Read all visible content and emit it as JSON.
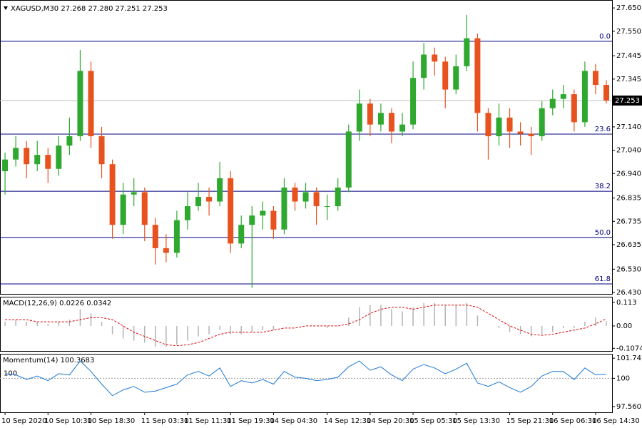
{
  "chart_data": [
    {
      "type": "candlestick",
      "title": "XAGUSD,M30  27.268 27.280 27.251 27.253",
      "open": [
        26.95,
        27.0,
        27.05,
        26.98,
        27.02,
        26.96,
        27.06,
        27.1,
        27.38,
        27.1,
        26.98,
        26.72,
        26.85,
        26.86,
        26.72,
        26.62,
        26.6,
        26.74,
        26.8,
        26.84,
        26.82,
        26.92,
        26.64,
        26.72,
        26.76,
        26.78,
        26.7,
        26.88,
        26.82,
        26.86,
        26.8,
        26.8,
        26.88,
        27.12,
        27.24,
        27.15,
        27.2,
        27.12,
        27.15,
        27.35,
        27.45,
        27.42,
        27.3,
        27.4,
        27.52,
        27.2,
        27.1,
        27.18,
        27.12,
        27.11,
        27.1,
        27.22,
        27.26,
        27.28,
        27.16,
        27.38,
        27.32
      ],
      "high": [
        27.03,
        27.1,
        27.08,
        27.08,
        27.05,
        27.1,
        27.18,
        27.47,
        27.42,
        27.14,
        27.0,
        26.9,
        26.92,
        26.88,
        26.75,
        26.68,
        26.78,
        26.86,
        26.9,
        26.88,
        26.99,
        26.95,
        26.76,
        26.8,
        26.82,
        26.8,
        26.92,
        26.9,
        26.9,
        26.88,
        26.85,
        26.92,
        27.15,
        27.3,
        27.26,
        27.24,
        27.22,
        27.2,
        27.42,
        27.5,
        27.48,
        27.44,
        27.45,
        27.62,
        27.54,
        27.22,
        27.24,
        27.22,
        27.16,
        27.14,
        27.25,
        27.3,
        27.32,
        27.3,
        27.42,
        27.41,
        27.34
      ],
      "low": [
        26.85,
        26.97,
        26.92,
        26.95,
        26.9,
        26.93,
        27.02,
        27.08,
        27.05,
        26.92,
        26.66,
        26.68,
        26.8,
        26.65,
        26.55,
        26.56,
        26.58,
        26.7,
        26.78,
        26.76,
        26.8,
        26.6,
        26.62,
        26.45,
        26.7,
        26.66,
        26.68,
        26.78,
        26.79,
        26.72,
        26.74,
        26.78,
        26.86,
        27.08,
        27.1,
        27.12,
        27.07,
        27.1,
        27.13,
        27.3,
        27.36,
        27.22,
        27.28,
        27.38,
        27.12,
        27.0,
        27.06,
        27.05,
        27.06,
        27.02,
        27.08,
        27.19,
        27.22,
        27.12,
        27.14,
        27.28,
        27.24
      ],
      "close": [
        27.0,
        27.05,
        26.98,
        27.02,
        26.96,
        27.06,
        27.1,
        27.38,
        27.1,
        26.98,
        26.72,
        26.85,
        26.86,
        26.72,
        26.62,
        26.6,
        26.74,
        26.8,
        26.84,
        26.82,
        26.92,
        26.64,
        26.72,
        26.76,
        26.78,
        26.7,
        26.88,
        26.82,
        26.86,
        26.8,
        26.8,
        26.88,
        27.12,
        27.24,
        27.15,
        27.2,
        27.12,
        27.15,
        27.35,
        27.45,
        27.42,
        27.3,
        27.4,
        27.52,
        27.2,
        27.1,
        27.18,
        27.12,
        27.11,
        27.1,
        27.22,
        27.26,
        27.28,
        27.16,
        27.38,
        27.32,
        27.253
      ],
      "up_color": "#2ea82e",
      "down_color": "#e8521e",
      "ylim": [
        26.424,
        27.684
      ],
      "yticks": [
        {
          "value": 27.65,
          "label": "27.650"
        },
        {
          "value": 27.55,
          "label": "27.550"
        },
        27.445,
        27.345,
        {
          "value": 27.14,
          "label": "27.140"
        },
        {
          "value": 27.04,
          "label": "27.040"
        },
        {
          "value": 26.94,
          "label": "26.940"
        },
        26.835,
        26.735,
        26.635,
        {
          "value": 26.53,
          "label": "26.530"
        },
        {
          "value": 26.43,
          "label": "26.430"
        }
      ],
      "xlim": [
        -0.47,
        56.53
      ],
      "xticks": [
        {
          "value": 0,
          "label": "10 Sep 2020"
        },
        {
          "value": 4,
          "label": "10 Sep 10:30"
        },
        {
          "value": 8,
          "label": "10 Sep 18:30"
        },
        {
          "value": 13,
          "label": "11 Sep 03:30"
        },
        {
          "value": 17,
          "label": "11 Sep 11:30"
        },
        {
          "value": 21,
          "label": "11 Sep 19:30"
        },
        {
          "value": 25,
          "label": "14 Sep 04:30"
        },
        {
          "value": 30,
          "label": "14 Sep 12:30"
        },
        {
          "value": 34,
          "label": "14 Sep 20:30"
        },
        {
          "value": 38,
          "label": "15 Sep 05:30"
        },
        {
          "value": 42,
          "label": "15 Sep 13:30"
        },
        {
          "value": 47,
          "label": "15 Sep 21:30"
        },
        {
          "value": 51,
          "label": "16 Sep 06:30"
        },
        {
          "value": 55,
          "label": "16 Sep 14:30"
        }
      ],
      "levels": [
        {
          "label": "0.0",
          "value": 27.507
        },
        {
          "label": "23.6",
          "value": 27.109
        },
        {
          "label": "38.2",
          "value": 26.864
        },
        {
          "label": "50.0",
          "value": 26.666
        },
        {
          "label": "61.8",
          "value": 26.467
        }
      ],
      "level_color": "#000080",
      "price_line_color": "#c0c0c0"
    },
    {
      "type": "macd",
      "title": "MACD(12,26,9) 0.0226 0.0342",
      "series": [
        {
          "style": "histogram",
          "color": "#b4b4b4",
          "values": [
            0.02,
            0.03,
            0.02,
            0.02,
            0.01,
            0.02,
            0.03,
            0.08,
            0.06,
            0.02,
            -0.04,
            -0.06,
            -0.07,
            -0.08,
            -0.1,
            -0.1,
            -0.09,
            -0.07,
            -0.05,
            -0.04,
            -0.02,
            -0.04,
            -0.04,
            -0.03,
            -0.02,
            -0.02,
            0.0,
            0.0,
            0.0,
            0.0,
            -0.01,
            0.0,
            0.04,
            0.09,
            0.1,
            0.1,
            0.08,
            0.07,
            0.09,
            0.11,
            0.11,
            0.1,
            0.1,
            0.11,
            0.05,
            0.0,
            -0.01,
            -0.03,
            -0.04,
            -0.05,
            -0.04,
            -0.03,
            -0.01,
            -0.01,
            0.02,
            0.04,
            0.0226
          ]
        },
        {
          "style": "dashed",
          "color": "#e00000",
          "values": [
            0.03,
            0.03,
            0.03,
            0.02,
            0.02,
            0.02,
            0.02,
            0.03,
            0.04,
            0.04,
            0.03,
            0.0,
            -0.03,
            -0.05,
            -0.07,
            -0.09,
            -0.095,
            -0.09,
            -0.08,
            -0.06,
            -0.04,
            -0.03,
            -0.03,
            -0.03,
            -0.03,
            -0.02,
            -0.01,
            -0.01,
            0.0,
            0.0,
            0.0,
            0.0,
            0.01,
            0.03,
            0.06,
            0.08,
            0.09,
            0.09,
            0.08,
            0.09,
            0.1,
            0.1,
            0.1,
            0.1,
            0.09,
            0.06,
            0.03,
            0.0,
            -0.02,
            -0.04,
            -0.045,
            -0.04,
            -0.03,
            -0.02,
            -0.01,
            0.01,
            0.0342
          ]
        }
      ],
      "ylim": [
        -0.12,
        0.14
      ],
      "yticks": [
        0.113,
        {
          "value": 0,
          "label": "0.00"
        },
        -0.1074
      ]
    },
    {
      "type": "line",
      "title": "Momentum(14) 100.3683",
      "color": "#1e78d2",
      "values": [
        100.4,
        100.3,
        99.9,
        100.2,
        99.8,
        100.4,
        100.3,
        101.5,
        100.6,
        99.5,
        98.5,
        99.0,
        99.3,
        98.8,
        98.9,
        99.2,
        99.5,
        100.3,
        100.6,
        100.2,
        100.9,
        99.3,
        99.8,
        99.6,
        99.9,
        99.5,
        100.6,
        100.1,
        100.0,
        99.8,
        99.9,
        100.1,
        101.0,
        101.5,
        100.7,
        101.0,
        100.3,
        99.8,
        100.8,
        101.2,
        100.9,
        100.4,
        100.8,
        101.3,
        99.6,
        99.3,
        99.7,
        99.2,
        98.8,
        99.3,
        100.2,
        100.6,
        100.6,
        99.9,
        100.9,
        100.3,
        100.3683
      ],
      "level": 100,
      "ylim": [
        97.06,
        102.125
      ],
      "yticks": [
        101.7428,
        100,
        97.5605
      ]
    }
  ]
}
